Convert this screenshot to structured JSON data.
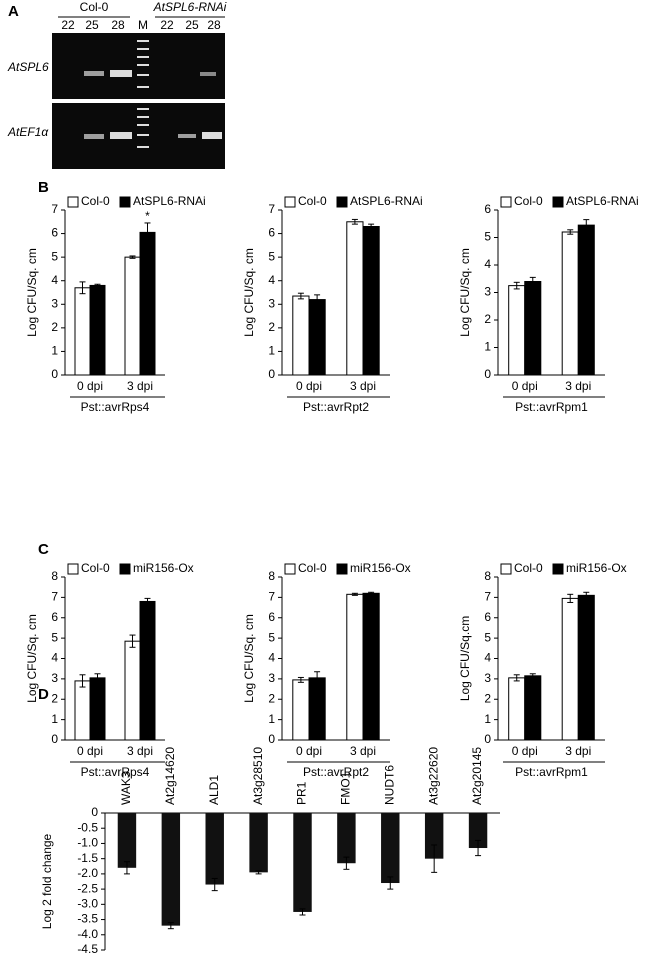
{
  "panel_labels": [
    "A",
    "B",
    "C",
    "D"
  ],
  "gel": {
    "groups": [
      "Col-0",
      "AtSPL6-RNAi"
    ],
    "lanes": [
      "22",
      "25",
      "28",
      "M",
      "22",
      "25",
      "28"
    ],
    "rows": [
      "AtSPL6",
      "AtEF1α"
    ]
  },
  "chart_data": [
    {
      "type": "bar",
      "categories": [
        "0 dpi",
        "3 dpi"
      ],
      "x_label": "Pst::avrRps4",
      "y_label": "Log CFU/Sq. cm",
      "ylim": [
        0,
        7
      ],
      "yticks": [
        0,
        1,
        2,
        3,
        4,
        5,
        6,
        7
      ],
      "annotation": "*",
      "series": [
        {
          "name": "Col-0",
          "color": "#ffffff",
          "values": [
            3.7,
            5.0
          ],
          "errors": [
            0.25,
            0.05
          ]
        },
        {
          "name": "AtSPL6-RNAi",
          "color": "#000000",
          "values": [
            3.8,
            6.05
          ],
          "errors": [
            0.05,
            0.4
          ]
        }
      ]
    },
    {
      "type": "bar",
      "categories": [
        "0 dpi",
        "3 dpi"
      ],
      "x_label": "Pst::avrRpt2",
      "y_label": "Log CFU/Sq. cm",
      "ylim": [
        0,
        7
      ],
      "yticks": [
        0,
        1,
        2,
        3,
        4,
        5,
        6,
        7
      ],
      "series": [
        {
          "name": "Col-0",
          "color": "#ffffff",
          "values": [
            3.35,
            6.5
          ],
          "errors": [
            0.12,
            0.1
          ]
        },
        {
          "name": "AtSPL6-RNAi",
          "color": "#000000",
          "values": [
            3.2,
            6.3
          ],
          "errors": [
            0.2,
            0.1
          ]
        }
      ]
    },
    {
      "type": "bar",
      "categories": [
        "0 dpi",
        "3 dpi"
      ],
      "x_label": "Pst::avrRpm1",
      "y_label": "Log CFU/Sq. cm",
      "ylim": [
        0,
        6
      ],
      "yticks": [
        0,
        1,
        2,
        3,
        4,
        5,
        6
      ],
      "series": [
        {
          "name": "Col-0",
          "color": "#ffffff",
          "values": [
            3.25,
            5.2
          ],
          "errors": [
            0.12,
            0.08
          ]
        },
        {
          "name": "AtSPL6-RNAi",
          "color": "#000000",
          "values": [
            3.4,
            5.45
          ],
          "errors": [
            0.15,
            0.2
          ]
        }
      ]
    },
    {
      "type": "bar",
      "categories": [
        "0 dpi",
        "3 dpi"
      ],
      "x_label": "Pst::avrRps4",
      "y_label": "Log CFU/Sq. cm",
      "ylim": [
        0,
        8
      ],
      "yticks": [
        0,
        1,
        2,
        3,
        4,
        5,
        6,
        7,
        8
      ],
      "series": [
        {
          "name": "Col-0",
          "color": "#ffffff",
          "values": [
            2.9,
            4.85
          ],
          "errors": [
            0.3,
            0.3
          ]
        },
        {
          "name": "miR156-Ox",
          "color": "#000000",
          "values": [
            3.05,
            6.8
          ],
          "errors": [
            0.2,
            0.15
          ]
        }
      ]
    },
    {
      "type": "bar",
      "categories": [
        "0 dpi",
        "3 dpi"
      ],
      "x_label": "Pst::avrRpt2",
      "y_label": "Log CFU/Sq. cm",
      "ylim": [
        0,
        8
      ],
      "yticks": [
        0,
        1,
        2,
        3,
        4,
        5,
        6,
        7,
        8
      ],
      "series": [
        {
          "name": "Col-0",
          "color": "#ffffff",
          "values": [
            2.95,
            7.15
          ],
          "errors": [
            0.12,
            0.05
          ]
        },
        {
          "name": "miR156-Ox",
          "color": "#000000",
          "values": [
            3.05,
            7.2
          ],
          "errors": [
            0.3,
            0.05
          ]
        }
      ]
    },
    {
      "type": "bar",
      "categories": [
        "0 dpi",
        "3 dpi"
      ],
      "x_label": "Pst::avrRpm1",
      "y_label": "Log CFU/Sq.cm",
      "ylim": [
        0,
        8
      ],
      "yticks": [
        0,
        1,
        2,
        3,
        4,
        5,
        6,
        7,
        8
      ],
      "series": [
        {
          "name": "Col-0",
          "color": "#ffffff",
          "values": [
            3.05,
            6.95
          ],
          "errors": [
            0.15,
            0.2
          ]
        },
        {
          "name": "miR156-Ox",
          "color": "#000000",
          "values": [
            3.15,
            7.1
          ],
          "errors": [
            0.1,
            0.15
          ]
        }
      ]
    },
    {
      "type": "bar",
      "categories": [
        "WAK3",
        "At2g14620",
        "ALD1",
        "At3g28510",
        "PR1",
        "FMO1",
        "NUDT6",
        "At3g22620",
        "At2g20145"
      ],
      "y_label": "Log 2 fold change",
      "color": "#111111",
      "values": [
        -1.8,
        -3.7,
        -2.35,
        -1.95,
        -3.25,
        -1.65,
        -2.3,
        -1.5,
        -1.15
      ],
      "errors": [
        0.2,
        0.1,
        0.2,
        0.05,
        0.1,
        0.2,
        0.2,
        0.45,
        0.25
      ],
      "ylim": [
        -4.5,
        0
      ],
      "yticks": [
        0,
        -0.5,
        {
          "value": -1,
          "label": "-1.0"
        },
        -1.5,
        {
          "value": -2,
          "label": "-2.0"
        },
        -2.5,
        {
          "value": -3,
          "label": "-3.0"
        },
        -3.5,
        {
          "value": -4,
          "label": "-4.0"
        },
        -4.5
      ]
    }
  ]
}
